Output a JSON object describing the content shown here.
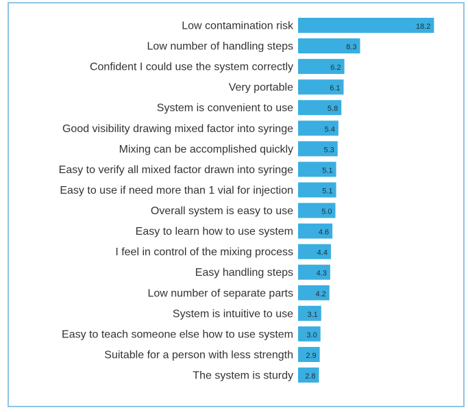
{
  "chart_data": {
    "type": "bar",
    "orientation": "horizontal",
    "categories": [
      "Low contamination risk",
      "Low number of handling steps",
      "Confident I could use the system correctly",
      "Very portable",
      "System is convenient to use",
      "Good visibility drawing mixed factor into syringe",
      "Mixing can be accomplished quickly",
      "Easy to verify all mixed factor drawn into syringe",
      "Easy to use if need more than 1 vial for injection",
      "Overall system is easy to use",
      "Easy to learn how to use system",
      "I feel in control of the mixing process",
      "Easy handling steps",
      "Low number of separate parts",
      "System is intuitive to use",
      "Easy to teach someone else how to use system",
      "Suitable for a person with less strength",
      "The system is sturdy"
    ],
    "values": [
      18.2,
      8.3,
      6.2,
      6.1,
      5.8,
      5.4,
      5.3,
      5.1,
      5.1,
      5.0,
      4.6,
      4.4,
      4.3,
      4.2,
      3.1,
      3.0,
      2.9,
      2.8
    ],
    "value_labels": [
      "18.2",
      "8.3",
      "6.2",
      "6.1",
      "5.8",
      "5.4",
      "5.3",
      "5.1",
      "5.1",
      "5.0",
      "4.6",
      "4.4",
      "4.3",
      "4.2",
      "3.1",
      "3.0",
      "2.9",
      "2.8"
    ],
    "bar_color": "#3aaee0",
    "border_color": "#8cc5e3",
    "grid": false,
    "legend": false
  }
}
